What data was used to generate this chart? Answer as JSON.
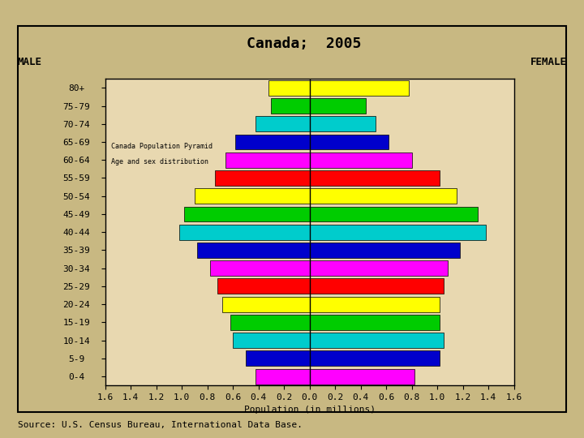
{
  "title": "Canada;  2005",
  "xlabel": "Population (in millions)",
  "source": "Source: U.S. Census Bureau, International Data Base.",
  "male_label": "MALE",
  "female_label": "FEMALE",
  "watermark_line1": "Canada Population Pyramid",
  "watermark_line2": "Age and sex distribution",
  "age_groups": [
    "0-4",
    "5-9",
    "10-14",
    "15-19",
    "20-24",
    "25-29",
    "30-34",
    "35-39",
    "40-44",
    "45-49",
    "50-54",
    "55-59",
    "60-64",
    "65-69",
    "70-74",
    "75-79",
    "80+"
  ],
  "male_values": [
    0.42,
    0.5,
    0.6,
    0.62,
    0.68,
    0.72,
    0.78,
    0.88,
    1.02,
    0.98,
    0.9,
    0.74,
    0.66,
    0.58,
    0.42,
    0.3,
    0.32
  ],
  "female_values": [
    0.82,
    1.02,
    1.05,
    1.02,
    1.02,
    1.05,
    1.08,
    1.18,
    1.38,
    1.32,
    1.15,
    1.02,
    0.8,
    0.62,
    0.52,
    0.44,
    0.78
  ],
  "colors": [
    "#FF00FF",
    "#0000CC",
    "#00CCCC",
    "#00CC00",
    "#FFFF00",
    "#FF0000",
    "#FF00FF",
    "#0000CC",
    "#00CCCC",
    "#00CC00",
    "#FFFF00",
    "#FF0000",
    "#FF00FF",
    "#0000CC",
    "#00CCCC",
    "#00CC00",
    "#FFFF00"
  ],
  "xlim": 1.6,
  "bg_color": "#C8B882",
  "plot_bg": "#E8D8B0",
  "border_color": "#000000",
  "title_fontsize": 13,
  "label_fontsize": 8,
  "axis_fontsize": 8,
  "source_fontsize": 8
}
